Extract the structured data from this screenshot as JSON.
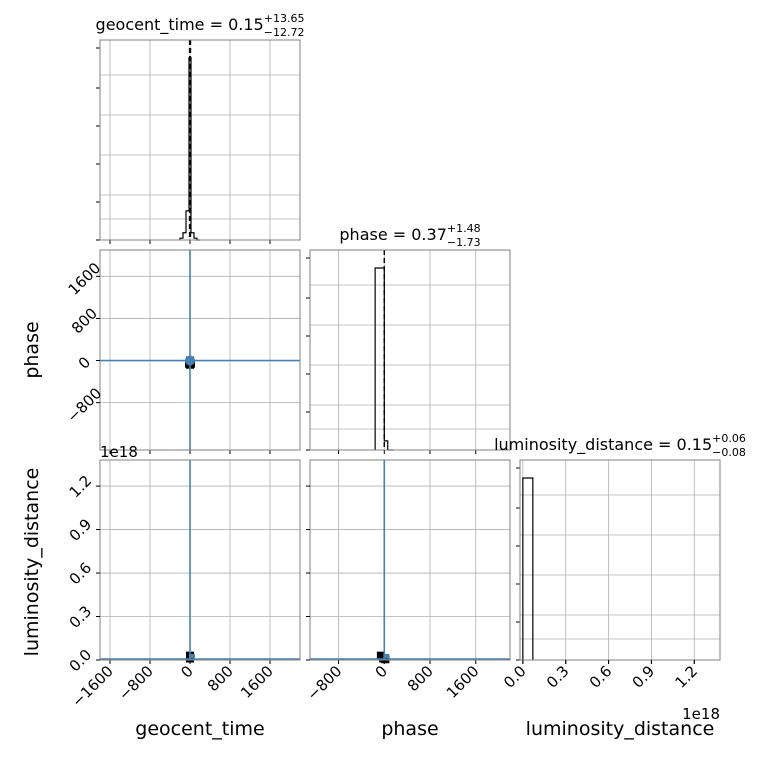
{
  "figure": {
    "colors": {
      "hist": "#000000",
      "contour": "#4682b4",
      "grid": "#b0b0b0",
      "spine": "#808080",
      "truth_line": "#000000"
    }
  },
  "chart_data": [
    {
      "panel": "hist-geocent_time",
      "type": "histogram",
      "parameter": "geocent_time",
      "title": {
        "prefix": "geocent_time = 0.15",
        "upper": "+13.65",
        "lower": "−12.72"
      },
      "median": 0.15,
      "quantiles": [
        -12.57,
        13.8
      ],
      "xlim": [
        -1800,
        2200
      ],
      "xticks": [
        -1600,
        -800,
        0,
        800,
        1600
      ],
      "bin_edges": [
        -200,
        -140,
        -80,
        -20,
        20,
        80,
        140,
        200
      ],
      "counts": [
        0.01,
        0.04,
        0.16,
        1.0,
        0.04,
        0.01,
        0.0
      ],
      "grid": true
    },
    {
      "panel": "hist-phase",
      "type": "histogram",
      "parameter": "phase",
      "title": {
        "prefix": "phase = 0.37",
        "upper": "+1.48",
        "lower": "−1.73"
      },
      "median": 0.37,
      "quantiles": [
        -1.36,
        1.85
      ],
      "xlim": [
        -1300,
        2200
      ],
      "xticks": [
        -800,
        0,
        800,
        1600
      ],
      "bin_edges": [
        -160,
        -60,
        0,
        60,
        160
      ],
      "counts": [
        1.0,
        1.0,
        0.05,
        0.0
      ],
      "grid": true
    },
    {
      "panel": "hist-luminosity_distance",
      "type": "histogram",
      "parameter": "luminosity_distance",
      "title": {
        "prefix": "luminosity_distance = 0.15",
        "upper": "+0.06",
        "lower": "−0.08"
      },
      "xlim": [
        -0.02,
        1.38
      ],
      "xticks": [
        "0.0",
        "0.3",
        "0.6",
        "0.9",
        "1.2"
      ],
      "xtick_values": [
        0.0,
        0.3,
        0.6,
        0.9,
        1.2
      ],
      "x_offset_label": "1e18",
      "bin_edges": [
        0.0,
        0.07
      ],
      "counts": [
        1.0
      ],
      "grid": true
    },
    {
      "panel": "2d-phase-vs-geocent_time",
      "type": "scatter",
      "x_parameter": "geocent_time",
      "y_parameter": "phase",
      "xlim": [
        -1800,
        2200
      ],
      "ylim": [
        -1700,
        2100
      ],
      "yticks": [
        -800,
        0,
        800,
        1600
      ],
      "truth": {
        "x": 0,
        "y": 0
      },
      "points": [
        [
          0,
          0
        ],
        [
          -20,
          -60
        ],
        [
          20,
          -60
        ],
        [
          0,
          -80
        ],
        [
          10,
          -40
        ]
      ],
      "grid": true
    },
    {
      "panel": "2d-luminosity_distance-vs-geocent_time",
      "type": "scatter",
      "x_parameter": "geocent_time",
      "y_parameter": "luminosity_distance",
      "xlim": [
        -1800,
        2200
      ],
      "ylim": [
        0.0,
        1.38
      ],
      "yticks": [
        "0.0",
        "0.3",
        "0.6",
        "0.9",
        "1.2"
      ],
      "ytick_values": [
        0.0,
        0.3,
        0.6,
        0.9,
        1.2
      ],
      "y_offset_label": "1e18",
      "truth": {
        "x": 0
      },
      "points": [
        [
          0,
          0.03
        ],
        [
          0,
          0.01
        ]
      ],
      "grid": true
    },
    {
      "panel": "2d-luminosity_distance-vs-phase",
      "type": "scatter",
      "x_parameter": "phase",
      "y_parameter": "luminosity_distance",
      "xlim": [
        -1300,
        2200
      ],
      "ylim": [
        0.0,
        1.38
      ],
      "truth": {
        "x": 0
      },
      "points": [
        [
          -60,
          0.03
        ],
        [
          -20,
          0.01
        ],
        [
          20,
          0.005
        ]
      ],
      "grid": true
    }
  ],
  "axis_labels": {
    "x": [
      "geocent_time",
      "phase",
      "luminosity_distance"
    ],
    "y": [
      "phase",
      "luminosity_distance"
    ]
  },
  "x_ticks_bottom": {
    "geocent_time": [
      "−1600",
      "−800",
      "0",
      "800",
      "1600"
    ],
    "phase": [
      "−800",
      "0",
      "800",
      "1600"
    ],
    "luminosity_distance": [
      "0.0",
      "0.3",
      "0.6",
      "0.9",
      "1.2"
    ]
  },
  "y_ticks_left": {
    "phase": [
      "−800",
      "0",
      "800",
      "1600"
    ],
    "luminosity_distance": [
      "0.0",
      "0.3",
      "0.6",
      "0.9",
      "1.2"
    ]
  },
  "offset_labels": {
    "left_y": "1e18",
    "bottom_x": "1e18"
  }
}
